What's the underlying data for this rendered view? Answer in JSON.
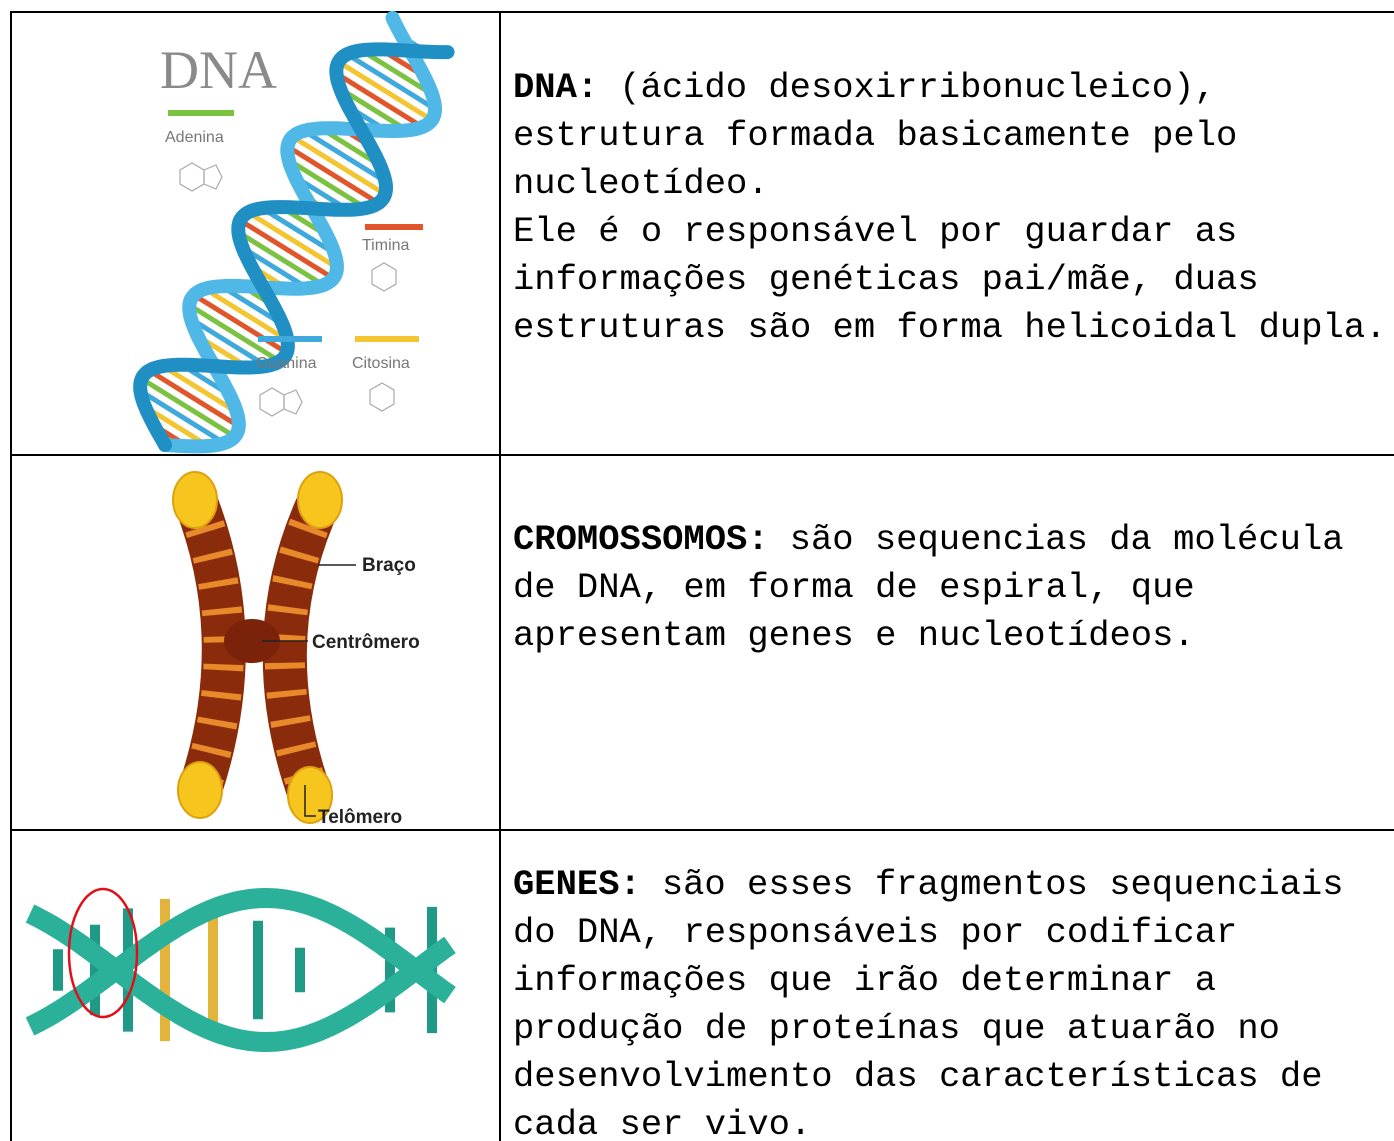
{
  "rows": [
    {
      "image": {
        "title": "DNA",
        "labels": [
          "Adenina",
          "Timina",
          "Guanina",
          "Citosina"
        ]
      },
      "term": "DNA:",
      "paragraphs": [
        "(ácido desoxirribonucleico), estrutura formada basicamente pelo nucleotídeo.",
        "Ele é o responsável por guardar as informações genéticas pai/mãe, duas estruturas são em forma helicoidal dupla."
      ]
    },
    {
      "image": {
        "labels": [
          "Braço",
          "Centrômero",
          "Telômero"
        ]
      },
      "term": "CROMOSSOMOS:",
      "paragraphs": [
        "são sequencias da molécula de DNA, em forma de espiral, que apresentam genes e nucleotídeos."
      ]
    },
    {
      "image": {},
      "term": "GENES:",
      "paragraphs": [
        "são esses fragmentos sequenciais do DNA, responsáveis por codificar informações que irão determinar a produção de proteínas que atuarão no desenvolvimento das características de cada ser vivo."
      ]
    }
  ]
}
